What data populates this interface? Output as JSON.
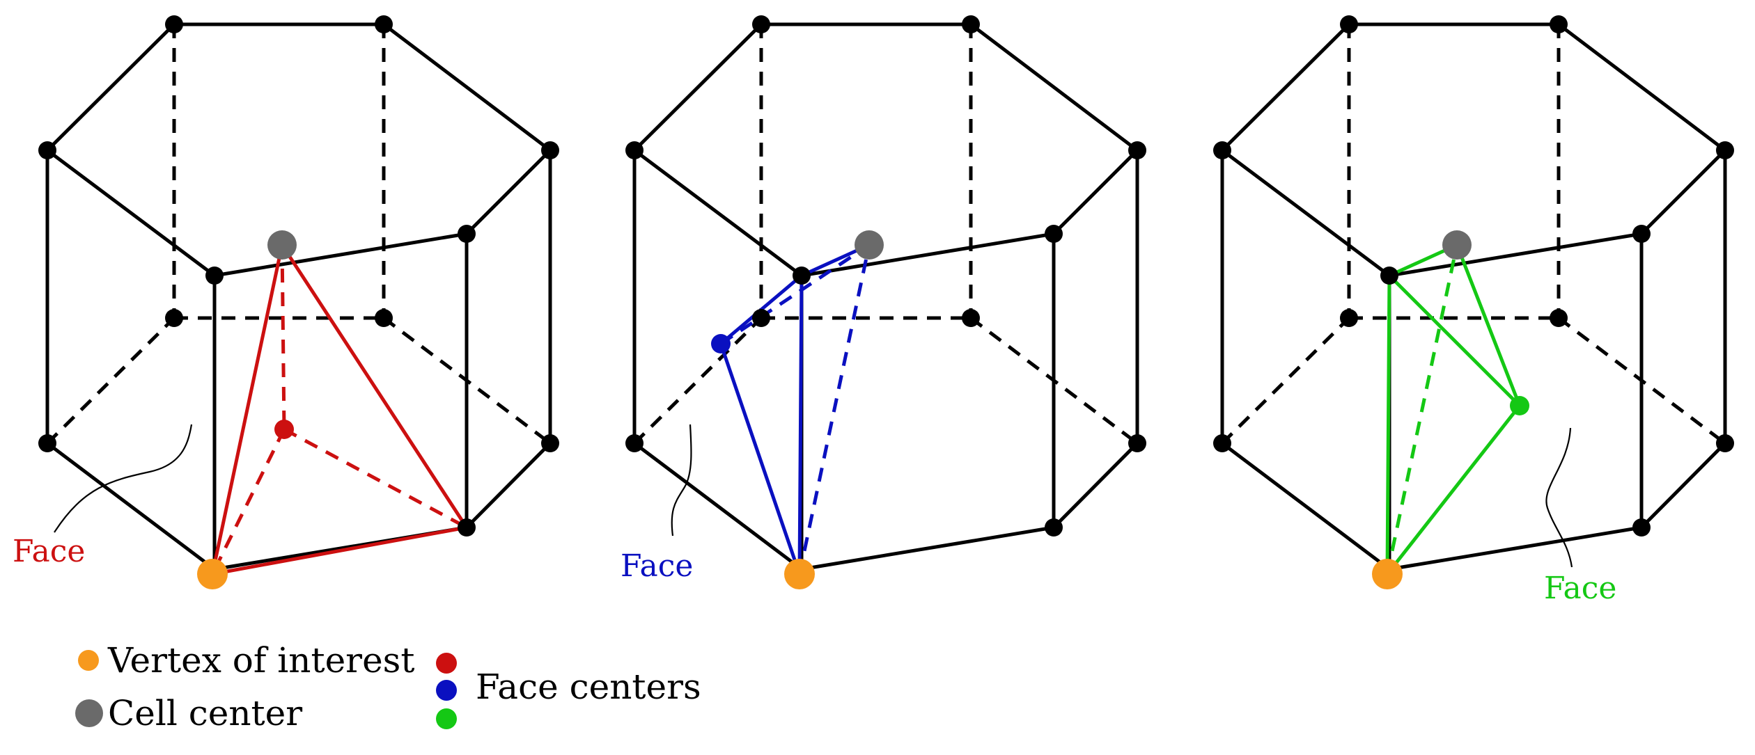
{
  "colors": {
    "edge": "#000000",
    "vertex": "#000000",
    "vertex_of_interest": "#F7991D",
    "cell_center": "#6A6A6A",
    "red": "#CC1010",
    "blue": "#0A10C0",
    "green": "#14C814"
  },
  "panels": [
    {
      "name": "panel-left",
      "face_label": "Face",
      "color_key": "red"
    },
    {
      "name": "panel-middle",
      "face_label": "Face",
      "color_key": "blue"
    },
    {
      "name": "panel-right",
      "face_label": "Face",
      "color_key": "green"
    }
  ],
  "legend": {
    "vertex_of_interest": "Vertex of interest",
    "cell_center": "Cell center",
    "face_centers": "Face centers"
  }
}
